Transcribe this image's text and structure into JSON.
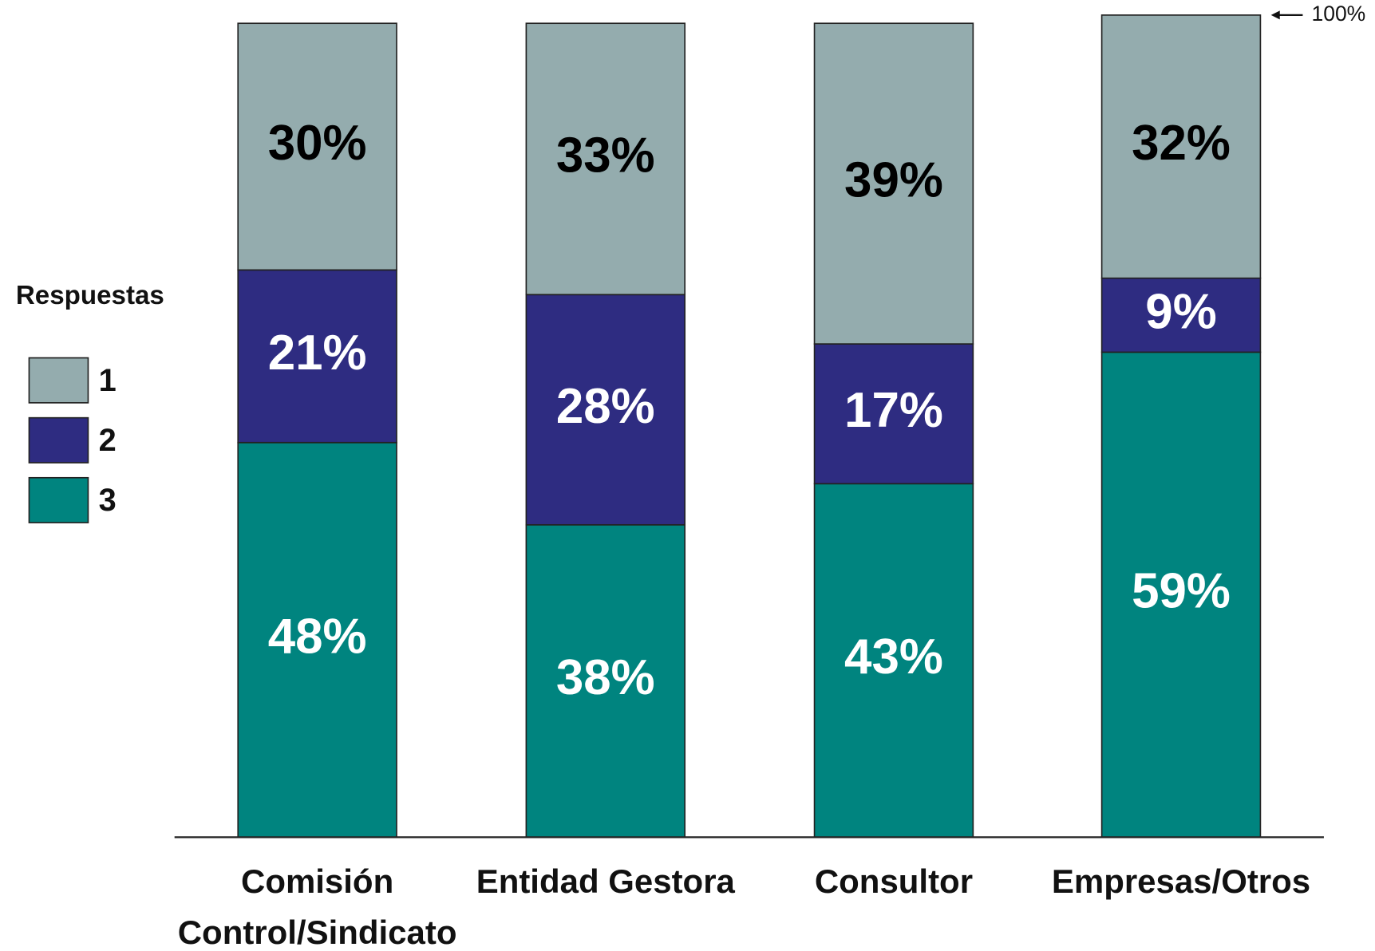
{
  "chart_data": {
    "type": "stacked_bar",
    "categories": [
      "Comisión\nControl/Sindicato",
      "Entidad Gestora",
      "Consultor",
      "Empresas/Otros"
    ],
    "series": [
      {
        "name": "1",
        "color": "#94acae",
        "label_color": "#000000",
        "values": [
          30,
          33,
          39,
          32
        ],
        "value_labels": [
          "30%",
          "33%",
          "39%",
          "32%"
        ]
      },
      {
        "name": "2",
        "color": "#2e2c81",
        "label_color": "#ffffff",
        "values": [
          21,
          28,
          17,
          9
        ],
        "value_labels": [
          "21%",
          "28%",
          "17%",
          "9%"
        ]
      },
      {
        "name": "3",
        "color": "#00847f",
        "label_color": "#ffffff",
        "values": [
          48,
          38,
          43,
          59
        ],
        "value_labels": [
          "48%",
          "38%",
          "43%",
          "59%"
        ]
      }
    ],
    "legend_title": "Respuestas",
    "legend": "left",
    "ylim": [
      0,
      100
    ],
    "annotation": "100%"
  }
}
